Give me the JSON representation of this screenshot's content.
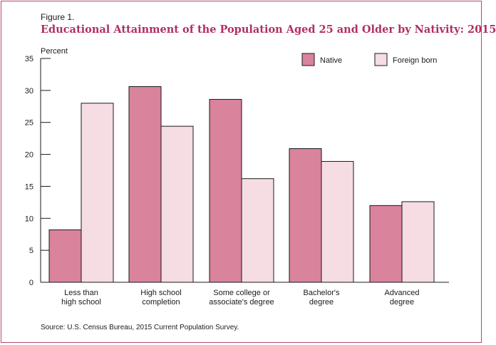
{
  "figure": {
    "label": "Figure 1.",
    "title": "Educational Attainment of the Population Aged 25 and Older by Nativity: 2015",
    "source": "Source: U.S. Census Bureau, 2015 Current Population Survey."
  },
  "colors": {
    "native": "#d9839c",
    "foreign_born": "#f5dde3",
    "bar_stroke": "#1a1a1a",
    "title": "#b02f64",
    "frame": "#b5476e"
  },
  "chart_data": {
    "type": "bar",
    "ylabel": "Percent",
    "xlabel": "",
    "ylim": [
      0,
      35
    ],
    "yticks": [
      0,
      5,
      10,
      15,
      20,
      25,
      30,
      35
    ],
    "grid": false,
    "legend_position": "top-right",
    "categories": [
      [
        "Less than",
        "high school"
      ],
      [
        "High school",
        "completion"
      ],
      [
        "Some college or",
        "associate's degree"
      ],
      [
        "Bachelor's",
        "degree"
      ],
      [
        "Advanced",
        "degree"
      ]
    ],
    "series": [
      {
        "name": "Native",
        "values": [
          8.2,
          30.6,
          28.6,
          20.9,
          12.0
        ]
      },
      {
        "name": "Foreign born",
        "values": [
          28.0,
          24.4,
          16.2,
          18.9,
          12.6
        ]
      }
    ]
  }
}
